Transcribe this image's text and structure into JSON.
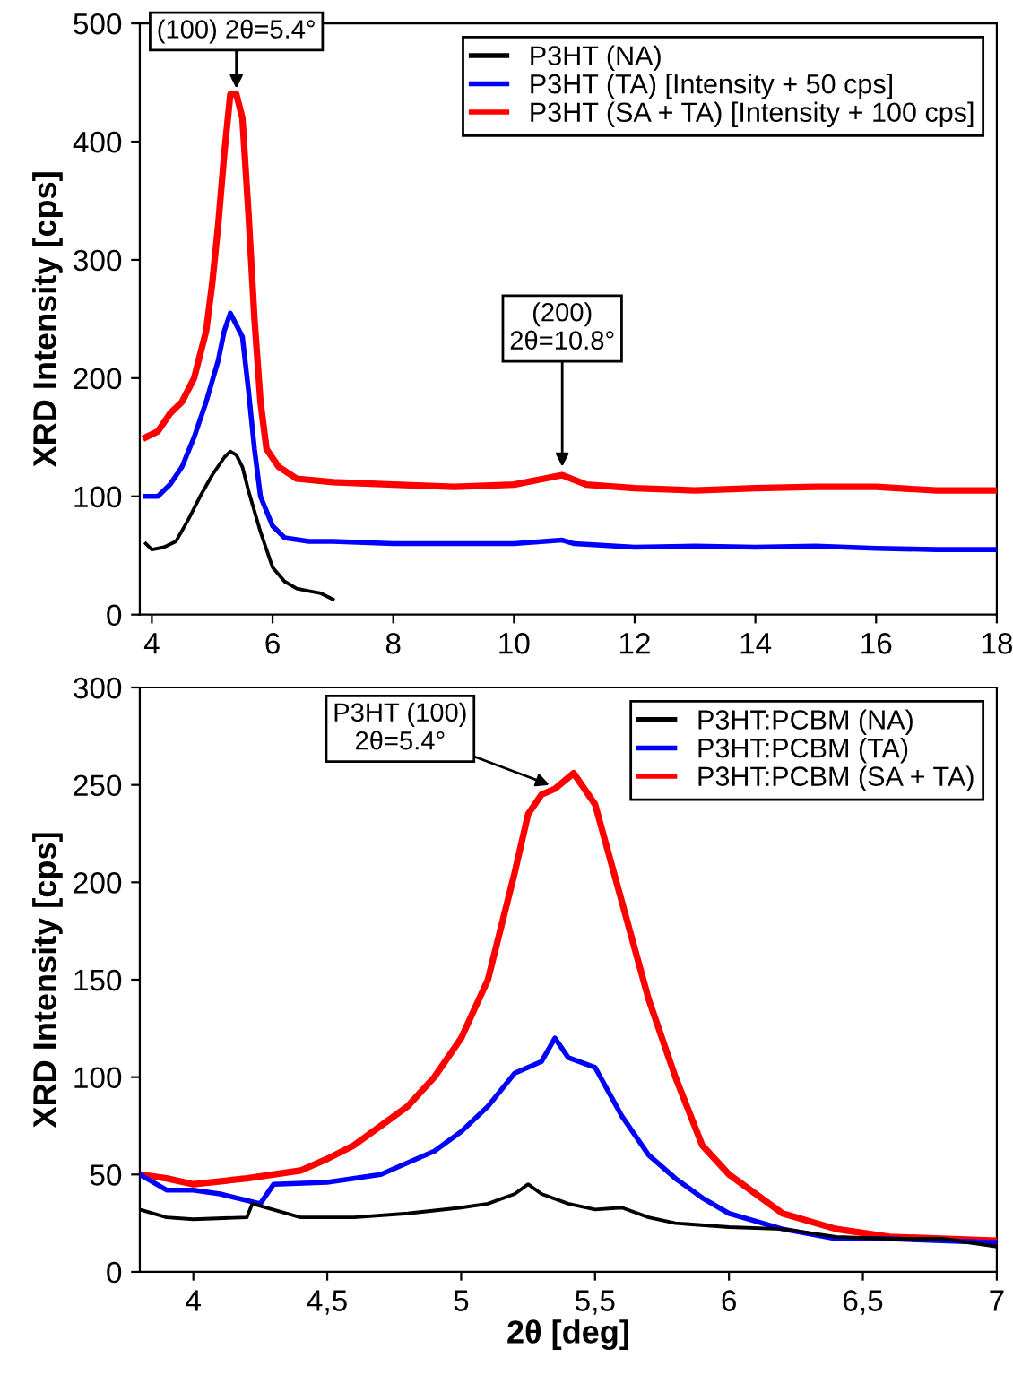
{
  "chart_data": [
    {
      "type": "line",
      "ylabel": "XRD Intensity [cps]",
      "xlim": [
        3.8,
        18
      ],
      "xticks": [
        4,
        6,
        8,
        10,
        12,
        14,
        16,
        18
      ],
      "ylim": [
        0,
        500
      ],
      "yticks": [
        0,
        100,
        200,
        300,
        400,
        500
      ],
      "legend": "top right",
      "grid": false,
      "line_style": "solid",
      "annotations": [
        {
          "text": "(100) 2θ=5.4°",
          "x": 5.4,
          "y": 445
        },
        {
          "text": "(200)\n2θ=10.8°",
          "x": 10.8,
          "y": 125
        }
      ],
      "series": [
        {
          "name": "P3HT (NA)",
          "color": "#000000",
          "x": [
            3.9,
            4.0,
            4.2,
            4.4,
            4.6,
            4.8,
            5.0,
            5.2,
            5.3,
            5.4,
            5.5,
            5.6,
            5.8,
            6.0,
            6.2,
            6.4,
            6.6,
            6.8,
            7.0
          ],
          "values": [
            60,
            55,
            57,
            62,
            80,
            100,
            118,
            133,
            138,
            135,
            125,
            105,
            70,
            40,
            28,
            22,
            20,
            18,
            13
          ]
        },
        {
          "name": "P3HT (TA) [Intensity + 50 cps]",
          "color": "#0000ff",
          "x": [
            3.9,
            4.1,
            4.3,
            4.5,
            4.7,
            4.9,
            5.1,
            5.2,
            5.3,
            5.4,
            5.5,
            5.6,
            5.7,
            5.8,
            6.0,
            6.2,
            6.6,
            7,
            8,
            9,
            10,
            10.5,
            10.8,
            11,
            12,
            13,
            14,
            15,
            16,
            17,
            18
          ],
          "values": [
            100,
            100,
            110,
            125,
            150,
            180,
            215,
            240,
            255,
            245,
            235,
            190,
            140,
            100,
            75,
            65,
            62,
            62,
            60,
            60,
            60,
            62,
            63,
            60,
            57,
            58,
            57,
            58,
            56,
            55,
            55
          ]
        },
        {
          "name": "P3HT (SA + TA) [Intensity + 100 cps]",
          "color": "#ff0000",
          "x": [
            3.9,
            4.1,
            4.3,
            4.5,
            4.7,
            4.9,
            5.0,
            5.1,
            5.2,
            5.3,
            5.4,
            5.5,
            5.6,
            5.7,
            5.8,
            5.9,
            6.1,
            6.4,
            7,
            8,
            9,
            10,
            10.5,
            10.8,
            11.2,
            12,
            13,
            14,
            15,
            16,
            17,
            18
          ],
          "values": [
            150,
            155,
            170,
            180,
            200,
            240,
            280,
            330,
            390,
            440,
            440,
            420,
            340,
            250,
            180,
            140,
            125,
            115,
            112,
            110,
            108,
            110,
            115,
            118,
            110,
            107,
            105,
            107,
            108,
            108,
            105,
            105
          ]
        }
      ]
    },
    {
      "type": "line",
      "xlabel": "2θ [deg]",
      "ylabel": "XRD Intensity [cps]",
      "xlim": [
        3.8,
        7
      ],
      "xticks": [
        4,
        {
          "value": 4.5,
          "label": "4,5"
        },
        5,
        {
          "value": 5.5,
          "label": "5,5"
        },
        6,
        {
          "value": 6.5,
          "label": "6,5"
        },
        7
      ],
      "ylim": [
        0,
        300
      ],
      "yticks": [
        0,
        50,
        100,
        150,
        200,
        250,
        300
      ],
      "legend": "top right",
      "grid": false,
      "line_style": "solid",
      "annotations": [
        {
          "text": "P3HT (100)\n2θ=5.4°",
          "x": 5.33,
          "y": 250
        }
      ],
      "series": [
        {
          "name": "P3HT:PCBM (NA)",
          "color": "#000000",
          "x": [
            3.8,
            3.9,
            4.0,
            4.2,
            4.22,
            4.4,
            4.6,
            4.8,
            5.0,
            5.1,
            5.2,
            5.25,
            5.3,
            5.4,
            5.5,
            5.6,
            5.7,
            5.8,
            6.0,
            6.2,
            6.4,
            6.6,
            6.8,
            7.0
          ],
          "values": [
            32,
            28,
            27,
            28,
            35,
            28,
            28,
            30,
            33,
            35,
            40,
            45,
            40,
            35,
            32,
            33,
            28,
            25,
            23,
            22,
            18,
            17,
            17,
            13
          ]
        },
        {
          "name": "P3HT:PCBM (TA)",
          "color": "#0000ff",
          "x": [
            3.8,
            3.9,
            4.0,
            4.1,
            4.25,
            4.3,
            4.5,
            4.7,
            4.9,
            5.0,
            5.1,
            5.2,
            5.3,
            5.35,
            5.4,
            5.5,
            5.6,
            5.7,
            5.8,
            5.9,
            6.0,
            6.2,
            6.4,
            6.6,
            7
          ],
          "values": [
            50,
            42,
            42,
            40,
            35,
            45,
            46,
            50,
            62,
            72,
            85,
            102,
            108,
            120,
            110,
            105,
            80,
            60,
            48,
            38,
            30,
            22,
            17,
            17,
            15
          ]
        },
        {
          "name": "P3HT:PCBM (SA + TA)",
          "color": "#ff0000",
          "x": [
            3.8,
            3.9,
            4.0,
            4.2,
            4.4,
            4.5,
            4.6,
            4.7,
            4.8,
            4.9,
            5.0,
            5.05,
            5.1,
            5.2,
            5.25,
            5.3,
            5.35,
            5.42,
            5.5,
            5.6,
            5.7,
            5.8,
            5.9,
            6.0,
            6.1,
            6.2,
            6.4,
            6.6,
            7
          ],
          "values": [
            50,
            48,
            45,
            48,
            52,
            58,
            65,
            75,
            85,
            100,
            120,
            135,
            150,
            205,
            235,
            245,
            248,
            256,
            240,
            190,
            140,
            100,
            65,
            50,
            40,
            30,
            22,
            18,
            16
          ]
        }
      ]
    }
  ]
}
